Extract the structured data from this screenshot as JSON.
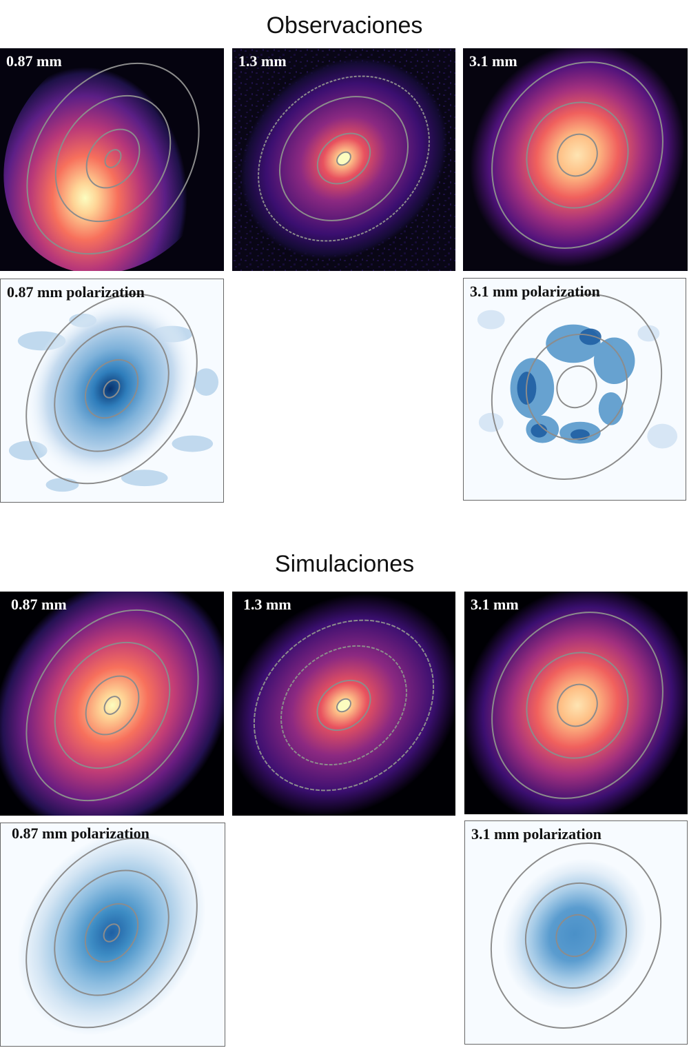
{
  "sections": [
    {
      "title": "Observaciones",
      "panels": [
        {
          "label": "0.87 mm",
          "kind": "intensity"
        },
        {
          "label": "1.3 mm",
          "kind": "intensity"
        },
        {
          "label": "3.1 mm",
          "kind": "intensity"
        },
        {
          "label": "0.87 mm polarization",
          "kind": "polarization"
        },
        {
          "label": "3.1 mm polarization",
          "kind": "polarization"
        }
      ]
    },
    {
      "title": "Simulaciones",
      "panels": [
        {
          "label": "0.87 mm",
          "kind": "intensity"
        },
        {
          "label": "1.3 mm",
          "kind": "intensity"
        },
        {
          "label": "3.1 mm",
          "kind": "intensity"
        },
        {
          "label": "0.87 mm polarization",
          "kind": "polarization"
        },
        {
          "label": "3.1 mm polarization",
          "kind": "polarization"
        }
      ]
    }
  ],
  "colors": {
    "intensity_colormap": [
      "#fcfdbf",
      "#fe9f6d",
      "#de4968",
      "#8c2981",
      "#3b0f70",
      "#000004"
    ],
    "polarization_colormap": [
      "#08306b",
      "#2171b5",
      "#6baed6",
      "#c6dbef",
      "#f7fbff"
    ],
    "contour": "#8c8c8c"
  }
}
